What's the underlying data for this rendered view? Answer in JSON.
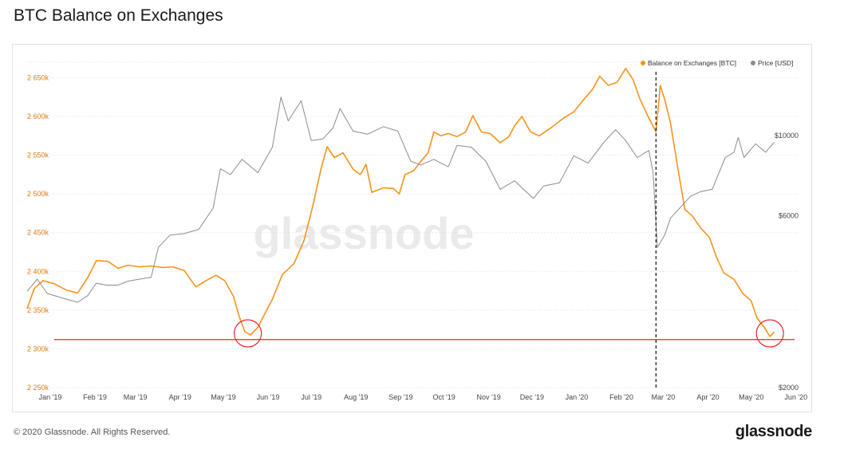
{
  "header": {
    "title": "BTC Balance on Exchanges"
  },
  "footer": {
    "copyright": "© 2020 Glassnode. All Rights Reserved.",
    "logo": "glassnode"
  },
  "watermark": "glassnode",
  "colors": {
    "balance": "#f7931a",
    "price": "#8c8c8c",
    "support": "#e8262a",
    "grid": "#ececec",
    "axis_left": "#e07b12"
  },
  "chart_data": {
    "type": "line",
    "title": "BTC Balance on Exchanges",
    "legend": {
      "placement": "top-right",
      "entries": [
        "Balance on Exchanges [BTC]",
        "Price [USD]"
      ]
    },
    "x_ticks": [
      "Jan '19",
      "Feb '19",
      "Mar '19",
      "Apr '19",
      "May '19",
      "Jun '19",
      "Jul '19",
      "Aug '19",
      "Sep '19",
      "Oct '19",
      "Nov '19",
      "Dec '19",
      "Jan '20",
      "Feb '20",
      "Mar '20",
      "Apr '20",
      "May '20",
      "Jun '20"
    ],
    "xlim": [
      "2019-01-01",
      "2020-06-05"
    ],
    "y_left": {
      "ticks": [
        "2 250k",
        "2 300k",
        "2 350k",
        "2 400k",
        "2 450k",
        "2 500k",
        "2 550k",
        "2 600k",
        "2 650k"
      ],
      "range": [
        2250000,
        2670000
      ]
    },
    "y_right": {
      "ticks": [
        "$2000",
        "$6000",
        "$10000"
      ],
      "scale": "log",
      "range": [
        2000,
        16000
      ]
    },
    "grid": true,
    "series": [
      {
        "name": "Balance on Exchanges [BTC]",
        "axis": "left",
        "points": [
          [
            "2019-01-01",
            2352000
          ],
          [
            "2019-01-06",
            2378000
          ],
          [
            "2019-01-12",
            2388000
          ],
          [
            "2019-01-20",
            2384000
          ],
          [
            "2019-01-28",
            2376000
          ],
          [
            "2019-02-05",
            2372000
          ],
          [
            "2019-02-12",
            2392000
          ],
          [
            "2019-02-18",
            2414000
          ],
          [
            "2019-02-26",
            2413000
          ],
          [
            "2019-03-05",
            2404000
          ],
          [
            "2019-03-12",
            2408000
          ],
          [
            "2019-03-20",
            2406000
          ],
          [
            "2019-03-28",
            2407000
          ],
          [
            "2019-04-05",
            2405000
          ],
          [
            "2019-04-12",
            2406000
          ],
          [
            "2019-04-20",
            2401000
          ],
          [
            "2019-04-28",
            2380000
          ],
          [
            "2019-05-05",
            2388000
          ],
          [
            "2019-05-12",
            2395000
          ],
          [
            "2019-05-18",
            2388000
          ],
          [
            "2019-05-24",
            2368000
          ],
          [
            "2019-05-28",
            2342000
          ],
          [
            "2019-06-01",
            2322000
          ],
          [
            "2019-06-05",
            2318000
          ],
          [
            "2019-06-10",
            2328000
          ],
          [
            "2019-06-15",
            2346000
          ],
          [
            "2019-06-20",
            2364000
          ],
          [
            "2019-06-27",
            2396000
          ],
          [
            "2019-07-05",
            2410000
          ],
          [
            "2019-07-12",
            2440000
          ],
          [
            "2019-07-18",
            2484000
          ],
          [
            "2019-07-24",
            2534000
          ],
          [
            "2019-07-28",
            2561000
          ],
          [
            "2019-08-02",
            2547000
          ],
          [
            "2019-08-08",
            2553000
          ],
          [
            "2019-08-15",
            2532000
          ],
          [
            "2019-08-20",
            2525000
          ],
          [
            "2019-08-24",
            2538000
          ],
          [
            "2019-08-28",
            2502000
          ],
          [
            "2019-09-05",
            2508000
          ],
          [
            "2019-09-12",
            2507000
          ],
          [
            "2019-09-16",
            2500000
          ],
          [
            "2019-09-20",
            2525000
          ],
          [
            "2019-09-26",
            2530000
          ],
          [
            "2019-10-01",
            2542000
          ],
          [
            "2019-10-06",
            2553000
          ],
          [
            "2019-10-10",
            2580000
          ],
          [
            "2019-10-15",
            2575000
          ],
          [
            "2019-10-20",
            2578000
          ],
          [
            "2019-10-26",
            2574000
          ],
          [
            "2019-11-01",
            2580000
          ],
          [
            "2019-11-06",
            2601000
          ],
          [
            "2019-11-12",
            2580000
          ],
          [
            "2019-11-18",
            2578000
          ],
          [
            "2019-11-25",
            2566000
          ],
          [
            "2019-12-01",
            2574000
          ],
          [
            "2019-12-05",
            2588000
          ],
          [
            "2019-12-10",
            2600000
          ],
          [
            "2019-12-16",
            2580000
          ],
          [
            "2019-12-22",
            2575000
          ],
          [
            "2019-12-30",
            2585000
          ],
          [
            "2020-01-08",
            2598000
          ],
          [
            "2020-01-15",
            2606000
          ],
          [
            "2020-01-22",
            2622000
          ],
          [
            "2020-01-28",
            2635000
          ],
          [
            "2020-02-02",
            2652000
          ],
          [
            "2020-02-08",
            2640000
          ],
          [
            "2020-02-14",
            2644000
          ],
          [
            "2020-02-20",
            2662000
          ],
          [
            "2020-02-25",
            2648000
          ],
          [
            "2020-03-01",
            2622000
          ],
          [
            "2020-03-07",
            2598000
          ],
          [
            "2020-03-12",
            2580000
          ],
          [
            "2020-03-15",
            2640000
          ],
          [
            "2020-03-18",
            2622000
          ],
          [
            "2020-03-22",
            2592000
          ],
          [
            "2020-03-27",
            2535000
          ],
          [
            "2020-04-01",
            2480000
          ],
          [
            "2020-04-06",
            2472000
          ],
          [
            "2020-04-12",
            2456000
          ],
          [
            "2020-04-18",
            2444000
          ],
          [
            "2020-04-23",
            2418000
          ],
          [
            "2020-04-28",
            2398000
          ],
          [
            "2020-05-05",
            2390000
          ],
          [
            "2020-05-11",
            2372000
          ],
          [
            "2020-05-17",
            2362000
          ],
          [
            "2020-05-21",
            2340000
          ],
          [
            "2020-05-26",
            2328000
          ],
          [
            "2020-05-30",
            2316000
          ],
          [
            "2020-06-02",
            2322000
          ]
        ]
      },
      {
        "name": "Price [USD]",
        "axis": "right",
        "points": [
          [
            "2019-01-01",
            3700
          ],
          [
            "2019-01-08",
            4000
          ],
          [
            "2019-01-15",
            3650
          ],
          [
            "2019-01-25",
            3550
          ],
          [
            "2019-02-05",
            3450
          ],
          [
            "2019-02-12",
            3600
          ],
          [
            "2019-02-18",
            3900
          ],
          [
            "2019-02-25",
            3850
          ],
          [
            "2019-03-05",
            3850
          ],
          [
            "2019-03-12",
            3950
          ],
          [
            "2019-03-20",
            4000
          ],
          [
            "2019-03-28",
            4050
          ],
          [
            "2019-04-02",
            4900
          ],
          [
            "2019-04-10",
            5300
          ],
          [
            "2019-04-20",
            5350
          ],
          [
            "2019-04-30",
            5500
          ],
          [
            "2019-05-10",
            6300
          ],
          [
            "2019-05-15",
            8100
          ],
          [
            "2019-05-22",
            7800
          ],
          [
            "2019-05-30",
            8600
          ],
          [
            "2019-06-10",
            7900
          ],
          [
            "2019-06-20",
            9300
          ],
          [
            "2019-06-26",
            12800
          ],
          [
            "2019-07-01",
            11000
          ],
          [
            "2019-07-10",
            12500
          ],
          [
            "2019-07-17",
            9700
          ],
          [
            "2019-07-25",
            9800
          ],
          [
            "2019-08-01",
            10500
          ],
          [
            "2019-08-06",
            11900
          ],
          [
            "2019-08-15",
            10300
          ],
          [
            "2019-08-25",
            10100
          ],
          [
            "2019-09-05",
            10600
          ],
          [
            "2019-09-15",
            10300
          ],
          [
            "2019-09-24",
            8500
          ],
          [
            "2019-10-01",
            8300
          ],
          [
            "2019-10-10",
            8600
          ],
          [
            "2019-10-20",
            8200
          ],
          [
            "2019-10-26",
            9400
          ],
          [
            "2019-11-05",
            9300
          ],
          [
            "2019-11-15",
            8500
          ],
          [
            "2019-11-25",
            7100
          ],
          [
            "2019-12-05",
            7500
          ],
          [
            "2019-12-18",
            6700
          ],
          [
            "2019-12-25",
            7250
          ],
          [
            "2020-01-05",
            7400
          ],
          [
            "2020-01-15",
            8800
          ],
          [
            "2020-01-25",
            8400
          ],
          [
            "2020-02-05",
            9600
          ],
          [
            "2020-02-13",
            10400
          ],
          [
            "2020-02-20",
            9700
          ],
          [
            "2020-02-28",
            8700
          ],
          [
            "2020-03-07",
            9100
          ],
          [
            "2020-03-10",
            7900
          ],
          [
            "2020-03-13",
            4900
          ],
          [
            "2020-03-18",
            5300
          ],
          [
            "2020-03-22",
            5900
          ],
          [
            "2020-03-30",
            6400
          ],
          [
            "2020-04-05",
            6800
          ],
          [
            "2020-04-12",
            7000
          ],
          [
            "2020-04-20",
            7100
          ],
          [
            "2020-04-29",
            8700
          ],
          [
            "2020-05-05",
            9000
          ],
          [
            "2020-05-08",
            9900
          ],
          [
            "2020-05-12",
            8700
          ],
          [
            "2020-05-20",
            9500
          ],
          [
            "2020-05-27",
            9000
          ],
          [
            "2020-06-02",
            9600
          ]
        ]
      }
    ],
    "annotations": [
      {
        "type": "horizontal-line",
        "axis": "left",
        "value": 2312000,
        "color": "#e8262a"
      },
      {
        "type": "vertical-dashed-line",
        "x": "2020-03-12"
      },
      {
        "type": "circle",
        "x": "2019-06-03",
        "y": 2320000,
        "color": "#e8262a"
      },
      {
        "type": "circle",
        "x": "2020-05-30",
        "y": 2320000,
        "color": "#e8262a"
      }
    ]
  }
}
